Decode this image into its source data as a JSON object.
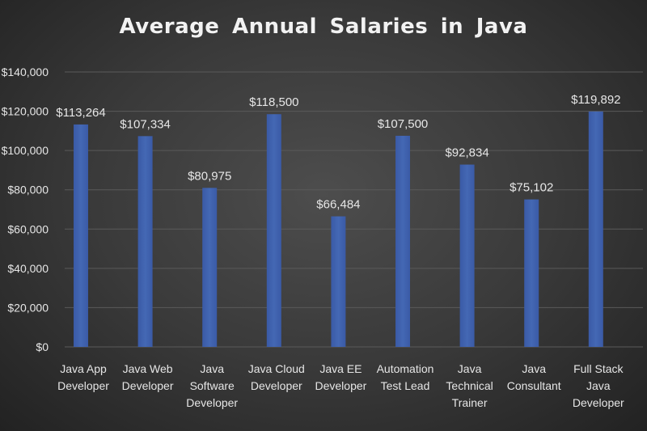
{
  "chart_data": {
    "type": "bar",
    "title": "Average Annual Salaries in Java",
    "categories": [
      "Java App Developer",
      "Java Web Developer",
      "Java Software Developer",
      "Java Cloud Developer",
      "Java EE Developer",
      "Automation Test Lead",
      "Java Technical Trainer",
      "Java Consultant",
      "Full Stack Java Developer"
    ],
    "category_lines": [
      [
        "Java App",
        "Developer"
      ],
      [
        "Java Web",
        "Developer"
      ],
      [
        "Java",
        "Software",
        "Developer"
      ],
      [
        "Java Cloud",
        "Developer"
      ],
      [
        "Java EE",
        "Developer"
      ],
      [
        "Automation",
        "Test Lead"
      ],
      [
        "Java",
        "Technical",
        "Trainer"
      ],
      [
        "Java",
        "Consultant"
      ],
      [
        "Full Stack",
        "Java",
        "Developer"
      ]
    ],
    "values": [
      113264,
      107334,
      80975,
      118500,
      66484,
      107500,
      92834,
      75102,
      119892
    ],
    "data_labels": [
      "$113,264",
      "$107,334",
      "$80,975",
      "$118,500",
      "$66,484",
      "$107,500",
      "$92,834",
      "$75,102",
      "$119,892"
    ],
    "yticks": [
      "$0",
      "$20,000",
      "$40,000",
      "$60,000",
      "$80,000",
      "$100,000",
      "$120,000",
      "$140,000"
    ],
    "ylim": [
      0,
      140000
    ],
    "grid": true,
    "legend": "none",
    "colors": {
      "bar": "#4468b4",
      "text": "#e6e6e6",
      "grid": "#5a5a5a"
    }
  }
}
